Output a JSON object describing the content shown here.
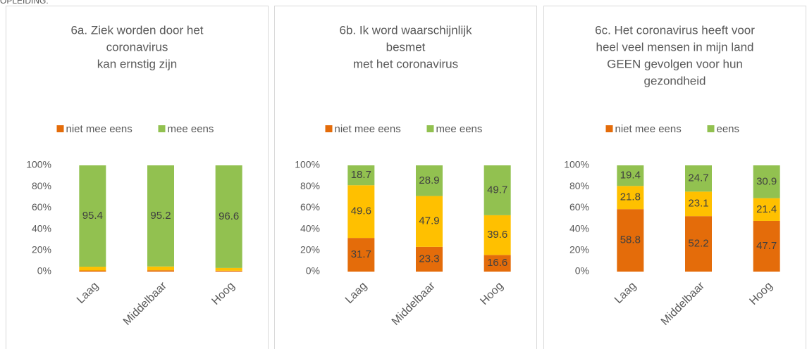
{
  "header": "OPLEIDING:",
  "chart_data": [
    {
      "type": "bar",
      "stack": "percent",
      "title": [
        "6a. Ziek worden door het",
        "coronavirus",
        "kan ernstig zijn"
      ],
      "categories": [
        "Laag",
        "Middelbaar",
        "Hoog"
      ],
      "series": [
        {
          "name": "niet mee eens",
          "color": "#e46c0a",
          "values": [
            1.0,
            1.2,
            0.8
          ],
          "show_labels": false
        },
        {
          "color": "#ffc000",
          "values": [
            3.6,
            3.6,
            2.6
          ],
          "show_labels": false
        },
        {
          "name": "mee eens",
          "color": "#92c150",
          "values": [
            95.4,
            95.2,
            96.6
          ],
          "show_labels": true
        }
      ],
      "ylim": [
        0,
        100
      ],
      "yticks": [
        {
          "value": 0,
          "label": "0%"
        },
        {
          "value": 20,
          "label": "20%"
        },
        {
          "value": 40,
          "label": "40%"
        },
        {
          "value": 60,
          "label": "60%"
        },
        {
          "value": 80,
          "label": "80%"
        },
        {
          "value": 100,
          "label": "100%"
        }
      ],
      "legend": "top",
      "grid": false
    },
    {
      "type": "bar",
      "stack": "percent",
      "title": [
        "6b. Ik word waarschijnlijk",
        "besmet",
        "met het coronavirus"
      ],
      "categories": [
        "Laag",
        "Middelbaar",
        "Hoog"
      ],
      "series": [
        {
          "name": "niet mee eens",
          "color": "#e46c0a",
          "values": [
            31.7,
            23.3,
            16.6
          ],
          "show_labels": true
        },
        {
          "color": "#ffc000",
          "values": [
            49.6,
            47.9,
            39.6
          ],
          "show_labels": true
        },
        {
          "name": "mee eens",
          "color": "#92c150",
          "values": [
            18.7,
            28.9,
            49.7
          ],
          "show_labels": true
        }
      ],
      "ylim": [
        0,
        100
      ],
      "yticks": [
        {
          "value": 0,
          "label": "0%"
        },
        {
          "value": 20,
          "label": "20%"
        },
        {
          "value": 40,
          "label": "40%"
        },
        {
          "value": 60,
          "label": "60%"
        },
        {
          "value": 80,
          "label": "80%"
        },
        {
          "value": 100,
          "label": "100%"
        }
      ],
      "legend": "top",
      "grid": false
    },
    {
      "type": "bar",
      "stack": "percent",
      "title": [
        "6c. Het coronavirus heeft voor",
        "heel veel mensen in mijn land",
        "GEEN gevolgen voor hun",
        "gezondheid"
      ],
      "categories": [
        "Laag",
        "Middelbaar",
        "Hoog"
      ],
      "series": [
        {
          "name": "niet mee eens",
          "color": "#e46c0a",
          "values": [
            58.8,
            52.2,
            47.7
          ],
          "show_labels": true
        },
        {
          "color": "#ffc000",
          "values": [
            21.8,
            23.1,
            21.4
          ],
          "show_labels": true
        },
        {
          "name": "eens",
          "color": "#92c150",
          "values": [
            19.4,
            24.7,
            30.9
          ],
          "show_labels": true
        }
      ],
      "ylim": [
        0,
        100
      ],
      "yticks": [
        {
          "value": 0,
          "label": "0%"
        },
        {
          "value": 20,
          "label": "20%"
        },
        {
          "value": 40,
          "label": "40%"
        },
        {
          "value": 60,
          "label": "60%"
        },
        {
          "value": 80,
          "label": "80%"
        },
        {
          "value": 100,
          "label": "100%"
        }
      ],
      "legend": "top",
      "grid": false
    }
  ]
}
